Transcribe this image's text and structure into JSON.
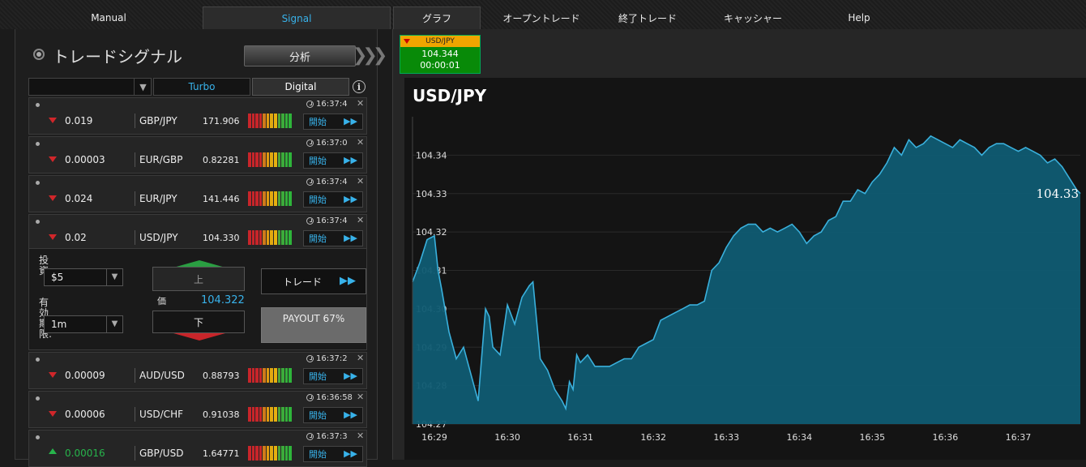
{
  "nav": {
    "tabs": [
      "Manual",
      "Signal",
      "グラフ",
      "オープントレード",
      "終了トレード",
      "キャッシャー",
      "Help"
    ]
  },
  "left": {
    "title": "トレードシグナル",
    "analyze_label": "分析",
    "filter": {
      "selected": "",
      "tab_turbo": "Turbo",
      "tab_digital": "Digital"
    },
    "info_icon": "info-icon",
    "start_label": "開始",
    "signals_top": [
      {
        "time": "16:37:4",
        "direction": "down",
        "change": "0.019",
        "pair": "GBP/JPY",
        "price": "171.906"
      },
      {
        "time": "16:37:0",
        "direction": "down",
        "change": "0.00003",
        "pair": "EUR/GBP",
        "price": "0.82281"
      },
      {
        "time": "16:37:4",
        "direction": "down",
        "change": "0.024",
        "pair": "EUR/JPY",
        "price": "141.446"
      },
      {
        "time": "16:37:4",
        "direction": "down",
        "change": "0.02",
        "pair": "USD/JPY",
        "price": "104.330"
      }
    ],
    "signals_bottom": [
      {
        "time": "16:37:2",
        "direction": "down",
        "change": "0.00009",
        "pair": "AUD/USD",
        "price": "0.88793"
      },
      {
        "time": "16:36:58",
        "direction": "down",
        "change": "0.00006",
        "pair": "USD/CHF",
        "price": "0.91038"
      },
      {
        "time": "16:37:3",
        "direction": "up",
        "change": "0.00016",
        "pair": "GBP/USD",
        "price": "1.64771"
      }
    ],
    "trade": {
      "investment_label": "投資:",
      "investment_value": "$5",
      "expiry_label": "有効期限:",
      "expiry_value": "1m",
      "call_label": "上",
      "put_label": "下",
      "price_label": "価格:",
      "price_value": "104.322",
      "trade_label": "トレード",
      "payout_label": "PAYOUT 67%"
    }
  },
  "asset_tab": {
    "pair": "USD/JPY",
    "price": "104.344",
    "timer": "00:00:01"
  },
  "colors": {
    "accent": "#38b2ea",
    "up": "#27b34b",
    "down": "#d0262a",
    "line": "#3ab0dc",
    "fill": "#0f5b72"
  },
  "chart_data": {
    "type": "area",
    "title": "USD/JPY",
    "xlabel": "",
    "ylabel": "",
    "ylim": [
      104.27,
      104.35
    ],
    "yticks": [
      104.27,
      104.28,
      104.29,
      104.3,
      104.31,
      104.32,
      104.33,
      104.34
    ],
    "xticks": [
      "16:29",
      "16:30",
      "16:31",
      "16:32",
      "16:33",
      "16:34",
      "16:35",
      "16:36",
      "16:37"
    ],
    "xrange_minutes": [
      28.7,
      37.85
    ],
    "last_label": "104.33",
    "series": [
      {
        "x": [
          28.7,
          28.8,
          28.9,
          29.0,
          29.05,
          29.1,
          29.2,
          29.3,
          29.4,
          29.5,
          29.6,
          29.7,
          29.75,
          29.8,
          29.9,
          30.0,
          30.1,
          30.2,
          30.3,
          30.35,
          30.45,
          30.55,
          30.65,
          30.75,
          30.8,
          30.85,
          30.9,
          30.95,
          31.0,
          31.1,
          31.2,
          31.3,
          31.4,
          31.5,
          31.6,
          31.7,
          31.8,
          31.9,
          32.0,
          32.1,
          32.2,
          32.3,
          32.4,
          32.5,
          32.6,
          32.7,
          32.8,
          32.9,
          33.0,
          33.1,
          33.2,
          33.3,
          33.4,
          33.5,
          33.6,
          33.7,
          33.8,
          33.9,
          34.0,
          34.1,
          34.2,
          34.3,
          34.4,
          34.5,
          34.6,
          34.7,
          34.8,
          34.9,
          35.0,
          35.1,
          35.2,
          35.3,
          35.4,
          35.5,
          35.6,
          35.7,
          35.8,
          35.9,
          36.0,
          36.1,
          36.2,
          36.3,
          36.4,
          36.5,
          36.6,
          36.7,
          36.8,
          36.9,
          37.0,
          37.1,
          37.2,
          37.3,
          37.4,
          37.5,
          37.6,
          37.7,
          37.8,
          37.85
        ],
        "y": [
          104.307,
          104.312,
          104.318,
          104.319,
          104.31,
          104.305,
          104.294,
          104.287,
          104.29,
          104.283,
          104.276,
          104.3,
          104.298,
          104.29,
          104.288,
          104.301,
          104.296,
          104.303,
          104.306,
          104.307,
          104.287,
          104.284,
          104.279,
          104.276,
          104.274,
          104.281,
          104.279,
          104.288,
          104.286,
          104.288,
          104.285,
          104.285,
          104.285,
          104.286,
          104.287,
          104.287,
          104.29,
          104.291,
          104.292,
          104.297,
          104.298,
          104.299,
          104.3,
          104.301,
          104.301,
          104.302,
          104.31,
          104.312,
          104.316,
          104.319,
          104.321,
          104.322,
          104.322,
          104.32,
          104.321,
          104.32,
          104.321,
          104.322,
          104.32,
          104.317,
          104.319,
          104.32,
          104.323,
          104.324,
          104.328,
          104.328,
          104.331,
          104.33,
          104.333,
          104.335,
          104.338,
          104.342,
          104.34,
          104.344,
          104.342,
          104.343,
          104.345,
          104.344,
          104.343,
          104.342,
          104.344,
          104.343,
          104.342,
          104.34,
          104.342,
          104.343,
          104.343,
          104.342,
          104.341,
          104.342,
          104.341,
          104.34,
          104.338,
          104.339,
          104.337,
          104.334,
          104.331,
          104.33
        ]
      }
    ]
  }
}
